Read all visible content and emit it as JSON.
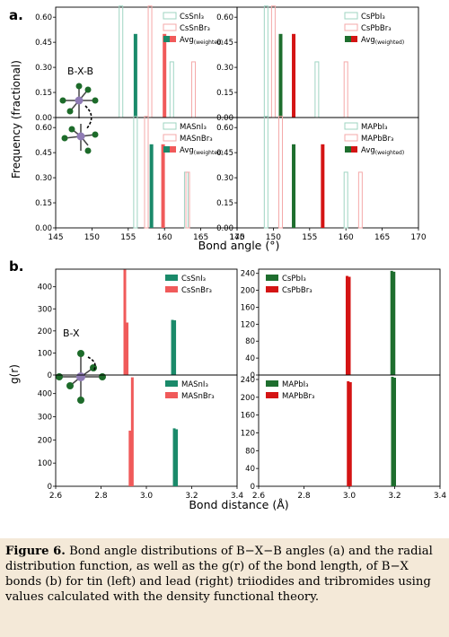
{
  "panel_a": {
    "label": "a.",
    "ylabel": "Frequency (fractional)",
    "xlabel": "Bond angle (°)",
    "inset_label": "B-X-B",
    "xticks": [
      "145",
      "150",
      "155",
      "160",
      "165",
      "170"
    ],
    "yticks": [
      "0.00",
      "0.15",
      "0.30",
      "0.45",
      "0.60"
    ]
  },
  "panel_b": {
    "label": "b.",
    "ylabel": "g(r)",
    "xlabel": "Bond distance (Å)",
    "inset_label": "B-X",
    "xticks": [
      "2.6",
      "2.8",
      "3.0",
      "3.2",
      "3.4"
    ]
  },
  "chart_data": [
    {
      "type": "bar",
      "panel": "a",
      "position": "top-left",
      "xlim": [
        145,
        170
      ],
      "ylim": [
        0,
        0.66
      ],
      "series": [
        {
          "name": "CsSnI₃",
          "style": "hist",
          "x": [
            154,
            161
          ],
          "values": [
            0.667,
            0.333
          ]
        },
        {
          "name": "CsSnBr₃",
          "style": "hist",
          "x": [
            158,
            164
          ],
          "values": [
            0.667,
            0.333
          ]
        },
        {
          "name": "Avg(weighted)",
          "style": "avg",
          "x": [
            156,
            160
          ],
          "values": [
            0.5,
            0.5
          ]
        }
      ]
    },
    {
      "type": "bar",
      "panel": "a",
      "position": "top-right",
      "xlim": [
        145,
        170
      ],
      "ylim": [
        0,
        0.66
      ],
      "series": [
        {
          "name": "CsPbI₃",
          "style": "hist",
          "x": [
            149,
            156
          ],
          "values": [
            0.667,
            0.333
          ]
        },
        {
          "name": "CsPbBr₃",
          "style": "hist",
          "x": [
            150,
            160
          ],
          "values": [
            0.667,
            0.333
          ]
        },
        {
          "name": "Avg(weighted)",
          "style": "avg",
          "x": [
            151,
            152.8
          ],
          "values": [
            0.5,
            0.5
          ]
        }
      ]
    },
    {
      "type": "bar",
      "panel": "a",
      "position": "bottom-left",
      "xlim": [
        145,
        170
      ],
      "ylim": [
        0,
        0.66
      ],
      "series": [
        {
          "name": "MASnI₃",
          "style": "hist",
          "x": [
            156,
            163
          ],
          "values": [
            0.667,
            0.333
          ]
        },
        {
          "name": "MASnBr₃",
          "style": "hist",
          "x": [
            157.5,
            163.2
          ],
          "values": [
            0.667,
            0.333
          ]
        },
        {
          "name": "Avg(weighted)",
          "style": "avg",
          "x": [
            158.2,
            159.8
          ],
          "values": [
            0.5,
            0.5
          ]
        }
      ]
    },
    {
      "type": "bar",
      "panel": "a",
      "position": "bottom-right",
      "xlim": [
        145,
        170
      ],
      "ylim": [
        0,
        0.66
      ],
      "series": [
        {
          "name": "MAPbI₃",
          "style": "hist",
          "x": [
            149,
            160
          ],
          "values": [
            0.667,
            0.333
          ]
        },
        {
          "name": "MAPbBr₃",
          "style": "hist",
          "x": [
            151,
            162
          ],
          "values": [
            0.667,
            0.333
          ]
        },
        {
          "name": "Avg(weighted)",
          "style": "avg",
          "x": [
            152.8,
            156.8
          ],
          "values": [
            0.5,
            0.5
          ]
        }
      ]
    },
    {
      "type": "bar",
      "panel": "b",
      "position": "top-left",
      "xlim": [
        2.6,
        3.4
      ],
      "ylim": [
        0,
        480
      ],
      "yticks": [
        "0",
        "100",
        "200",
        "300",
        "400"
      ],
      "series": [
        {
          "name": "CsSnI₃",
          "x": [
            3.115,
            3.125
          ],
          "values": [
            250,
            248
          ]
        },
        {
          "name": "CsSnBr₃",
          "x": [
            2.905,
            2.915
          ],
          "values": [
            478,
            238
          ]
        }
      ]
    },
    {
      "type": "bar",
      "panel": "b",
      "position": "top-right",
      "xlim": [
        2.6,
        3.4
      ],
      "ylim": [
        0,
        250
      ],
      "yticks": [
        "0",
        "40",
        "80",
        "120",
        "160",
        "200",
        "240"
      ],
      "series": [
        {
          "name": "CsPbI₃",
          "x": [
            3.187,
            3.197
          ],
          "values": [
            246,
            244
          ]
        },
        {
          "name": "CsPbBr₃",
          "x": [
            2.99,
            3.0
          ],
          "values": [
            234,
            232
          ]
        }
      ]
    },
    {
      "type": "bar",
      "panel": "b",
      "position": "bottom-left",
      "xlim": [
        2.6,
        3.4
      ],
      "ylim": [
        0,
        480
      ],
      "yticks": [
        "0",
        "100",
        "200",
        "300",
        "400"
      ],
      "series": [
        {
          "name": "MASnI₃",
          "x": [
            3.123,
            3.133
          ],
          "values": [
            250,
            246
          ]
        },
        {
          "name": "MASnBr₃",
          "x": [
            2.928,
            2.938
          ],
          "values": [
            240,
            470
          ]
        }
      ]
    },
    {
      "type": "bar",
      "panel": "b",
      "position": "bottom-right",
      "xlim": [
        2.6,
        3.4
      ],
      "ylim": [
        0,
        250
      ],
      "yticks": [
        "0",
        "40",
        "80",
        "120",
        "160",
        "200",
        "240"
      ],
      "series": [
        {
          "name": "MAPbI₃",
          "x": [
            3.19,
            3.2
          ],
          "values": [
            246,
            244
          ]
        },
        {
          "name": "MAPbBr₃",
          "x": [
            2.995,
            3.005
          ],
          "values": [
            236,
            234
          ]
        }
      ]
    }
  ],
  "colors": {
    "tin_iodide": "#1a8a6a",
    "tin_bromide": "#f05a5a",
    "lead_iodide": "#1e6e2e",
    "lead_bromide": "#d41414",
    "hist_green": "#9fd4c2",
    "hist_red": "#f4a9a9",
    "caption_bg": "#f4e9d8"
  },
  "caption": {
    "label": "Figure 6.",
    "text": "Bond angle distributions of B−X−B angles (a) and the radial distribution function, as well as the g(r) of the bond length, of B−X bonds (b) for tin (left) and lead (right) triiodides and tribromides using values calculated with the density functional theory."
  }
}
